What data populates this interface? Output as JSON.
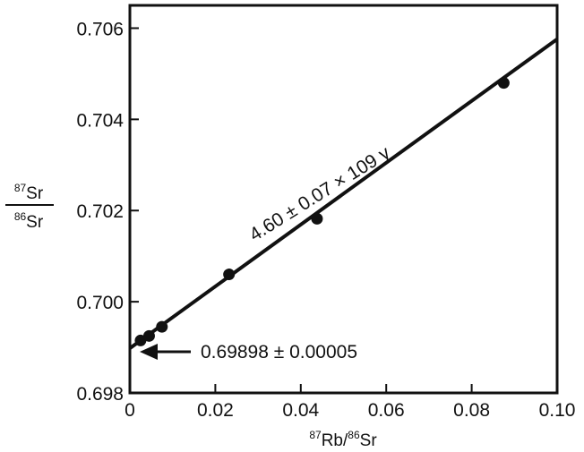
{
  "chart_data": {
    "type": "scatter",
    "xlabel": {
      "sup1": "87",
      "main1": "Rb/",
      "sup2": "86",
      "main2": "Sr"
    },
    "ylabel": {
      "num_sup": "87",
      "num_main": "Sr",
      "den_sup": "86",
      "den_main": "Sr"
    },
    "xlim": [
      0,
      0.1
    ],
    "ylim": [
      0.698,
      0.7065
    ],
    "x_ticks": [
      0,
      0.02,
      0.04,
      0.06,
      0.08,
      0.1
    ],
    "x_tick_labels": [
      "0",
      "0.02",
      "0.04",
      "0.06",
      "0.08",
      "0.10"
    ],
    "y_ticks": [
      0.698,
      0.7,
      0.702,
      0.704,
      0.706
    ],
    "y_tick_labels": [
      "0.698",
      "0.700",
      "0.702",
      "0.704",
      "0.706"
    ],
    "grid": false,
    "points": [
      {
        "x": 0.0025,
        "y": 0.69915
      },
      {
        "x": 0.0045,
        "y": 0.69925
      },
      {
        "x": 0.0075,
        "y": 0.69945
      },
      {
        "x": 0.0232,
        "y": 0.7006
      },
      {
        "x": 0.0438,
        "y": 0.70182
      },
      {
        "x": 0.0875,
        "y": 0.7048
      }
    ],
    "fit_line": {
      "intercept": 0.69898,
      "slope": 0.0678,
      "x_range": [
        0,
        0.1
      ]
    },
    "annotations": {
      "age": "4.60 ± 0.07 ×  109  y",
      "intercept": "0.69898 ± 0.00005"
    }
  }
}
